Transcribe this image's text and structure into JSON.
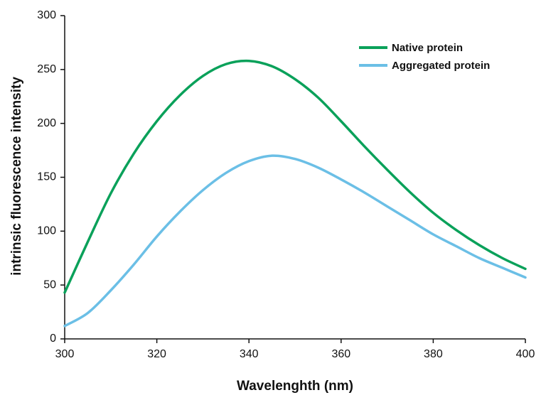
{
  "chart_data": {
    "type": "line",
    "title": "",
    "xlabel": "Wavelenghth (nm)",
    "ylabel": "intrinsic fluorescence intensity",
    "xlim": [
      300,
      400
    ],
    "ylim": [
      0,
      300
    ],
    "x_ticks": [
      300,
      320,
      340,
      360,
      380,
      400
    ],
    "y_ticks": [
      0,
      50,
      100,
      150,
      200,
      250,
      300
    ],
    "grid": false,
    "legend_position": "top-right",
    "series": [
      {
        "name": "Native protein",
        "color": "#0aa15a",
        "x": [
          300,
          305,
          310,
          315,
          320,
          325,
          330,
          335,
          340,
          345,
          350,
          355,
          360,
          365,
          370,
          375,
          380,
          385,
          390,
          395,
          400
        ],
        "y": [
          43,
          90,
          135,
          172,
          202,
          226,
          244,
          255,
          258,
          253,
          241,
          224,
          202,
          179,
          157,
          136,
          117,
          101,
          87,
          75,
          65
        ]
      },
      {
        "name": "Aggregated protein",
        "color": "#6bbfe6",
        "x": [
          300,
          305,
          310,
          315,
          320,
          325,
          330,
          335,
          340,
          345,
          350,
          355,
          360,
          365,
          370,
          375,
          380,
          385,
          390,
          395,
          400
        ],
        "y": [
          12,
          24,
          45,
          69,
          95,
          118,
          138,
          154,
          165,
          170,
          167,
          159,
          148,
          136,
          123,
          110,
          97,
          86,
          75,
          66,
          57
        ]
      }
    ]
  }
}
